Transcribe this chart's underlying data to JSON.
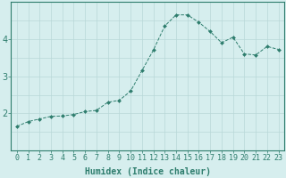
{
  "xlabel": "Humidex (Indice chaleur)",
  "x_values": [
    0,
    1,
    2,
    3,
    4,
    5,
    6,
    7,
    8,
    9,
    10,
    11,
    12,
    13,
    14,
    15,
    16,
    17,
    18,
    19,
    20,
    21,
    22,
    23
  ],
  "y_values": [
    1.65,
    1.78,
    1.85,
    1.92,
    1.93,
    1.97,
    2.05,
    2.08,
    2.3,
    2.35,
    2.6,
    3.15,
    3.7,
    4.35,
    4.65,
    4.65,
    4.45,
    4.2,
    3.9,
    4.05,
    3.6,
    3.57,
    3.8,
    3.72
  ],
  "line_color": "#2e7d6d",
  "marker_color": "#2e7d6d",
  "bg_color": "#d6eeee",
  "grid_color_major": "#b8d8d8",
  "grid_color_minor": "#c8e4e4",
  "axis_color": "#2e7d6d",
  "tick_color": "#2e7d6d",
  "label_color": "#2e7d6d",
  "ylim": [
    1.0,
    5.0
  ],
  "yticks": [
    2,
    3,
    4
  ],
  "xlim": [
    -0.5,
    23.5
  ],
  "xlabel_fontsize": 7,
  "tick_fontsize": 6,
  "ytick_fontsize": 7
}
